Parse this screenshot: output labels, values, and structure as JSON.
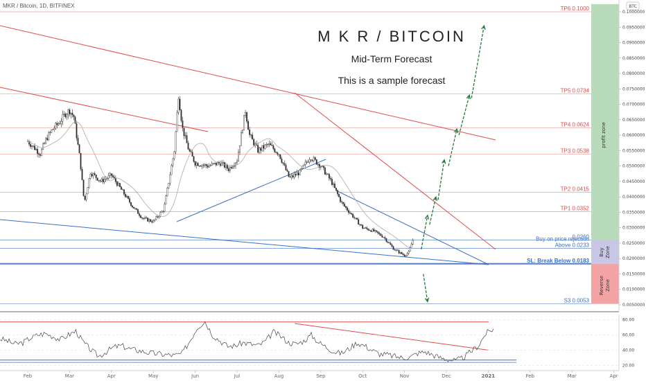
{
  "header": {
    "symbol": "MKR / Bitcoin, 1D, BITFINEX",
    "currency_badge": "BTC"
  },
  "chart_data": {
    "type": "candlestick",
    "title": "M K R / BITCOIN",
    "subtitle": "Mid-Term Forecast",
    "note": "This is a sample forecast",
    "x_ticks": [
      "Feb",
      "Mar",
      "Apr",
      "May",
      "Jun",
      "Jul",
      "Aug",
      "Sep",
      "Oct",
      "Nov",
      "Dec",
      "2021",
      "Feb",
      "Mar",
      "Apr"
    ],
    "y_ticks": [
      "0.1000000",
      "0.0950000",
      "0.0900000",
      "0.0850000",
      "0.0800000",
      "0.0750000",
      "0.0700000",
      "0.0650000",
      "0.0600000",
      "0.0550000",
      "0.0500000",
      "0.0450000",
      "0.0400000",
      "0.0350000",
      "0.0300000",
      "0.0250000",
      "0.0200000",
      "0.0150000",
      "0.0100000",
      "0.0050000"
    ],
    "ylim": [
      0.0027,
      0.1025
    ],
    "price_path": [
      {
        "t": 0,
        "p": 0.058
      },
      {
        "t": 0.15,
        "p": 0.056
      },
      {
        "t": 0.3,
        "p": 0.054
      },
      {
        "t": 0.45,
        "p": 0.059
      },
      {
        "t": 0.6,
        "p": 0.062
      },
      {
        "t": 0.75,
        "p": 0.064
      },
      {
        "t": 0.9,
        "p": 0.067
      },
      {
        "t": 1.0,
        "p": 0.068
      },
      {
        "t": 1.1,
        "p": 0.066
      },
      {
        "t": 1.25,
        "p": 0.052
      },
      {
        "t": 1.35,
        "p": 0.038
      },
      {
        "t": 1.5,
        "p": 0.048
      },
      {
        "t": 1.75,
        "p": 0.045
      },
      {
        "t": 2.0,
        "p": 0.047
      },
      {
        "t": 2.25,
        "p": 0.042
      },
      {
        "t": 2.5,
        "p": 0.037
      },
      {
        "t": 2.75,
        "p": 0.033
      },
      {
        "t": 3.0,
        "p": 0.032
      },
      {
        "t": 3.25,
        "p": 0.036
      },
      {
        "t": 3.5,
        "p": 0.055
      },
      {
        "t": 3.6,
        "p": 0.073
      },
      {
        "t": 3.7,
        "p": 0.062
      },
      {
        "t": 3.85,
        "p": 0.055
      },
      {
        "t": 4.0,
        "p": 0.051
      },
      {
        "t": 4.3,
        "p": 0.05
      },
      {
        "t": 4.6,
        "p": 0.051
      },
      {
        "t": 4.8,
        "p": 0.049
      },
      {
        "t": 5.0,
        "p": 0.052
      },
      {
        "t": 5.2,
        "p": 0.068
      },
      {
        "t": 5.3,
        "p": 0.06
      },
      {
        "t": 5.5,
        "p": 0.055
      },
      {
        "t": 5.75,
        "p": 0.057
      },
      {
        "t": 6.0,
        "p": 0.054
      },
      {
        "t": 6.25,
        "p": 0.046
      },
      {
        "t": 6.5,
        "p": 0.048
      },
      {
        "t": 6.75,
        "p": 0.053
      },
      {
        "t": 7.0,
        "p": 0.05
      },
      {
        "t": 7.25,
        "p": 0.045
      },
      {
        "t": 7.5,
        "p": 0.038
      },
      {
        "t": 7.75,
        "p": 0.034
      },
      {
        "t": 8.0,
        "p": 0.03
      },
      {
        "t": 8.25,
        "p": 0.029
      },
      {
        "t": 8.5,
        "p": 0.027
      },
      {
        "t": 8.75,
        "p": 0.023
      },
      {
        "t": 9.0,
        "p": 0.021
      },
      {
        "t": 9.1,
        "p": 0.022
      },
      {
        "t": 9.2,
        "p": 0.026
      }
    ],
    "levels": [
      {
        "label": "TP6 0.1000",
        "value": 0.1,
        "color": "#e04b4b",
        "type": "tp"
      },
      {
        "label": "TP5 0.0734",
        "value": 0.0734,
        "color": "#e04b4b",
        "type": "tp"
      },
      {
        "label": "TP4 0.0624",
        "value": 0.0624,
        "color": "#e04b4b",
        "type": "tp"
      },
      {
        "label": "TP3 0.0538",
        "value": 0.0538,
        "color": "#e04b4b",
        "type": "tp"
      },
      {
        "label": "TP2 0.0415",
        "value": 0.0415,
        "color": "#e04b4b",
        "type": "tp"
      },
      {
        "label": "TP1 0.0352",
        "value": 0.0352,
        "color": "#e04b4b",
        "type": "tp"
      },
      {
        "label": "0.0260",
        "value": 0.026,
        "color": "#3a6fc4",
        "type": "support"
      },
      {
        "label": "Above 0.0233",
        "value": 0.0233,
        "color": "#3a6fc4",
        "type": "buy"
      },
      {
        "label": "SL: Break Below 0.0183",
        "value": 0.0183,
        "color": "#2a5db8",
        "type": "sl"
      },
      {
        "label": "S3 0.0053",
        "value": 0.0053,
        "color": "#3a6fc4",
        "type": "support"
      }
    ],
    "buy_note": "Buy on price rejection",
    "zones": [
      {
        "label": "profit zone",
        "from": 0.026,
        "to": 0.1025,
        "color": "#b8dbb9"
      },
      {
        "label": "Buy Zone",
        "from": 0.0183,
        "to": 0.026,
        "color": "#c9c6e6"
      },
      {
        "label": "Reverse Zone",
        "from": 0.0053,
        "to": 0.0183,
        "color": "#f3a3a3"
      }
    ],
    "forecast_arrows": [
      {
        "from": [
          9.4,
          0.023
        ],
        "to": [
          9.55,
          0.034
        ]
      },
      {
        "from": [
          9.6,
          0.031
        ],
        "to": [
          9.75,
          0.04
        ]
      },
      {
        "from": [
          9.8,
          0.039
        ],
        "to": [
          9.95,
          0.052
        ]
      },
      {
        "from": [
          10.05,
          0.05
        ],
        "to": [
          10.25,
          0.062
        ]
      },
      {
        "from": [
          10.3,
          0.06
        ],
        "to": [
          10.55,
          0.073
        ]
      },
      {
        "from": [
          10.6,
          0.072
        ],
        "to": [
          10.9,
          0.0955
        ]
      },
      {
        "from": [
          9.45,
          0.015
        ],
        "to": [
          9.55,
          0.006
        ]
      }
    ],
    "indicator": {
      "y_ticks": [
        "80.00",
        "60.00",
        "40.00",
        "20.00"
      ],
      "ylim": [
        15,
        85
      ],
      "upper_band": 77,
      "lower_band": 27,
      "values": [
        55,
        52,
        48,
        50,
        56,
        60,
        62,
        58,
        54,
        60,
        65,
        50,
        40,
        32,
        38,
        44,
        46,
        42,
        40,
        38,
        36,
        35,
        34,
        33,
        36,
        52,
        70,
        78,
        60,
        52,
        45,
        46,
        50,
        48,
        46,
        52,
        64,
        58,
        50,
        48,
        52,
        60,
        50,
        44,
        38,
        36,
        42,
        50,
        46,
        40,
        35,
        34,
        32,
        30,
        31,
        36,
        38,
        34,
        30,
        28,
        26,
        30,
        38,
        46,
        62,
        68
      ]
    }
  }
}
